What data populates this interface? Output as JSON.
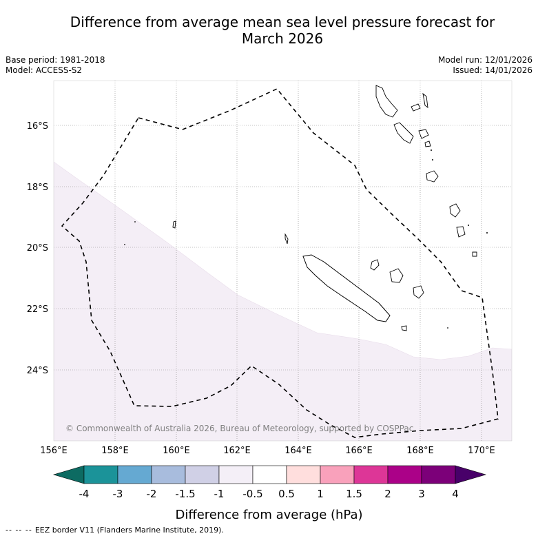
{
  "title": {
    "line1": "Difference from average mean sea level pressure forecast for",
    "line2": "March 2026"
  },
  "meta": {
    "base_period": "Base period: 1981-2018",
    "model": "Model: ACCESS-S2",
    "model_run": "Model run: 12/01/2026",
    "issued": "Issued: 14/01/2026"
  },
  "map": {
    "longitude_labels": [
      "156°E",
      "158°E",
      "160°E",
      "162°E",
      "164°E",
      "166°E",
      "168°E",
      "170°E"
    ],
    "latitude_labels": [
      "16°S",
      "18°S",
      "20°S",
      "22°S",
      "24°S"
    ],
    "copyright": "© Commonwealth of Australia 2026, Bureau of Meteorology, supported by COSPPac",
    "colors": {
      "anomaly_shading": "#f4eef6",
      "eez_border": "#000000",
      "gridline": "#888888"
    }
  },
  "colorbar": {
    "label": "Difference from average (hPa)",
    "tick_labels": [
      "-4",
      "-3",
      "-2",
      "-1.5",
      "-1",
      "-0.5",
      "0.5",
      "1",
      "1.5",
      "2",
      "3",
      "4"
    ],
    "colors": [
      "#0d6b62",
      "#1b9399",
      "#65a9d2",
      "#a8bcdd",
      "#d0d0e6",
      "#f4eff7",
      "#ffffff",
      "#ffdedd",
      "#f9a1bb",
      "#dd3697",
      "#ab0188",
      "#7c0079",
      "#480069"
    ]
  },
  "footer": {
    "marker": "--  --  --",
    "text": "EEZ border V11 (Flanders Marine Institute, 2019)."
  }
}
